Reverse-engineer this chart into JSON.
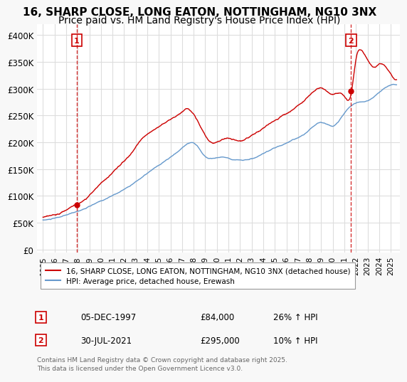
{
  "title": "16, SHARP CLOSE, LONG EATON, NOTTINGHAM, NG10 3NX",
  "subtitle": "Price paid vs. HM Land Registry's House Price Index (HPI)",
  "ylabel": "",
  "xlabel": "",
  "legend_line1": "16, SHARP CLOSE, LONG EATON, NOTTINGHAM, NG10 3NX (detached house)",
  "legend_line2": "HPI: Average price, detached house, Erewash",
  "red_color": "#cc0000",
  "blue_color": "#6699cc",
  "purchase1_label": "1",
  "purchase1_date": "05-DEC-1997",
  "purchase1_price": "£84,000",
  "purchase1_hpi": "26% ↑ HPI",
  "purchase2_label": "2",
  "purchase2_date": "30-JUL-2021",
  "purchase2_price": "£295,000",
  "purchase2_hpi": "10% ↑ HPI",
  "vline1_x": 1997.92,
  "vline2_x": 2021.58,
  "marker1_y": 84000,
  "marker2_y": 295000,
  "yticks": [
    0,
    50000,
    100000,
    150000,
    200000,
    250000,
    300000,
    350000,
    400000
  ],
  "ytick_labels": [
    "£0",
    "£50K",
    "£100K",
    "£150K",
    "£200K",
    "£250K",
    "£300K",
    "£350K",
    "£400K"
  ],
  "ylim": [
    -5000,
    420000
  ],
  "xlim_start": 1994.5,
  "xlim_end": 2025.8,
  "xticks": [
    1995,
    1996,
    1997,
    1998,
    1999,
    2000,
    2001,
    2002,
    2003,
    2004,
    2005,
    2006,
    2007,
    2008,
    2009,
    2010,
    2011,
    2012,
    2013,
    2014,
    2015,
    2016,
    2017,
    2018,
    2019,
    2020,
    2021,
    2022,
    2023,
    2024,
    2025
  ],
  "footer": "Contains HM Land Registry data © Crown copyright and database right 2025.\nThis data is licensed under the Open Government Licence v3.0.",
  "background_color": "#f8f8f8",
  "plot_bg_color": "#ffffff",
  "grid_color": "#dddddd",
  "title_fontsize": 11,
  "subtitle_fontsize": 10
}
